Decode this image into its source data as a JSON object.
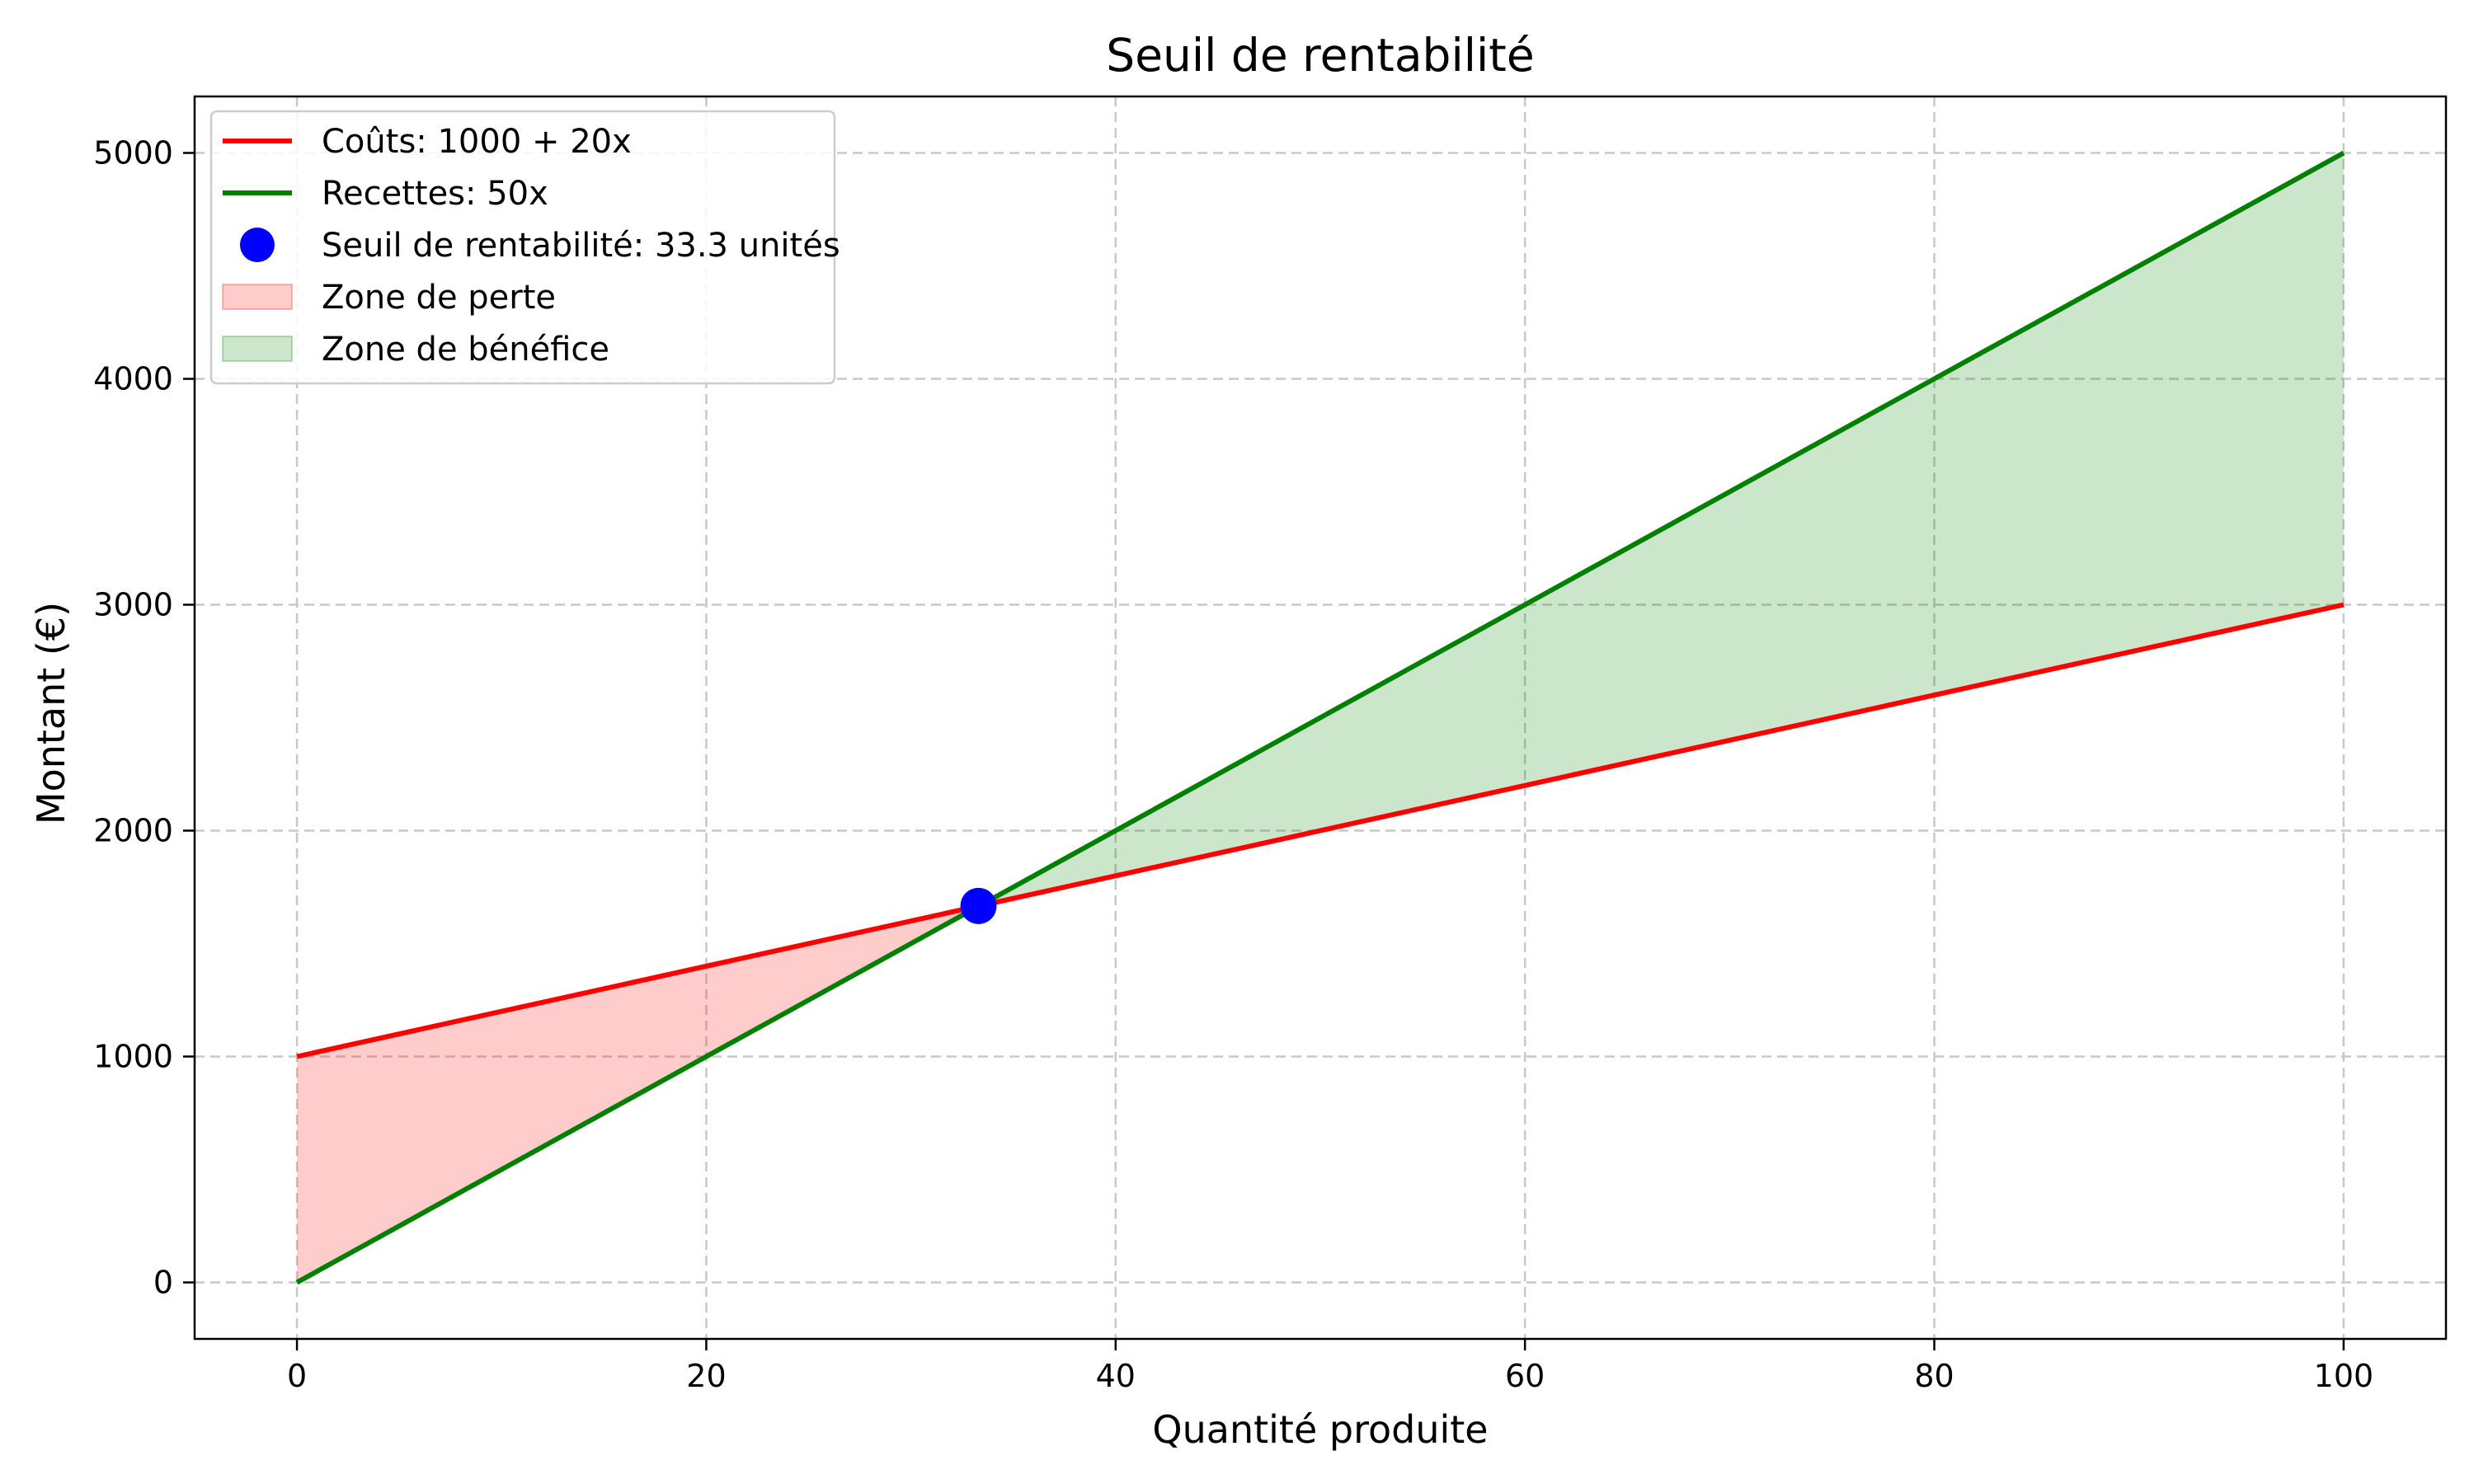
{
  "chart_data": {
    "type": "line",
    "title": "Seuil de rentabilité",
    "xlabel": "Quantité produite",
    "ylabel": "Montant (€)",
    "xlim": [
      -5,
      105
    ],
    "ylim": [
      -250,
      5250
    ],
    "xticks": [
      0,
      20,
      40,
      60,
      80,
      100
    ],
    "yticks": [
      0,
      1000,
      2000,
      3000,
      4000,
      5000
    ],
    "grid": true,
    "legend_position": "top-left",
    "series": [
      {
        "name": "Coûts: 1000 + 20x",
        "color": "#ff0000",
        "x": [
          0,
          100
        ],
        "y": [
          1000,
          3000
        ]
      },
      {
        "name": "Recettes: 50x",
        "color": "#008000",
        "x": [
          0,
          100
        ],
        "y": [
          0,
          5000
        ]
      }
    ],
    "break_even": {
      "name": "Seuil de rentabilité: 33.3 unités",
      "x": 33.3,
      "y": 1666.7,
      "color": "#0000ff"
    },
    "areas": [
      {
        "name": "Zone de perte",
        "color": "#ff0000",
        "opacity": 0.2,
        "x_range": [
          0,
          33.3
        ]
      },
      {
        "name": "Zone de bénéfice",
        "color": "#008000",
        "opacity": 0.2,
        "x_range": [
          33.3,
          100
        ]
      }
    ]
  }
}
